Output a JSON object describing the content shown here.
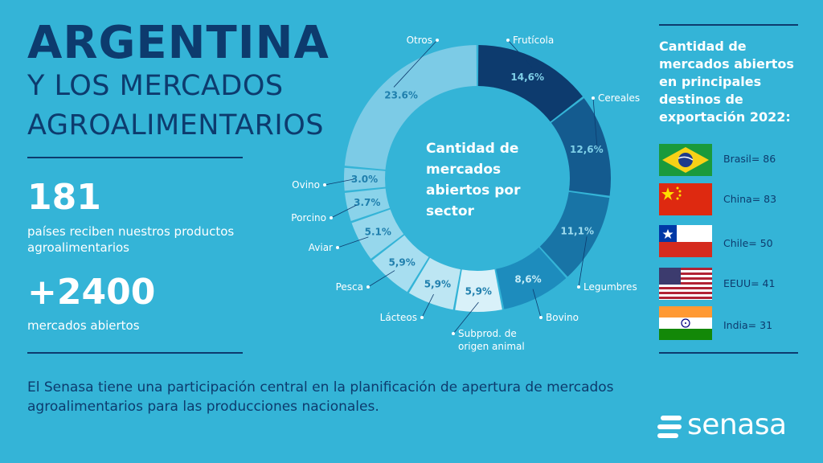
{
  "header": {
    "title_line1": "ARGENTINA",
    "title_line2": "Y LOS MERCADOS",
    "title_line3": "AGROALIMENTARIOS"
  },
  "stats": {
    "countries_value": "181",
    "countries_desc_line1": "países reciben nuestros productos",
    "countries_desc_line2": "agroalimentarios",
    "markets_value": "+2400",
    "markets_desc": "mercados abiertos"
  },
  "footer": {
    "line1": "El Senasa tiene una participación central en la planificación de apertura de mercados",
    "line2": "agroalimentarios para las producciones nacionales."
  },
  "chart_data": {
    "type": "pie",
    "donut": true,
    "title": "Cantidad de mercados abiertos por sector",
    "title_lines": [
      "Cantidad de",
      "mercados",
      "abiertos por",
      "sector"
    ],
    "slices": [
      {
        "label": "Frutícola",
        "value": 14.6,
        "value_label": "14,6%",
        "color": "#0d3b6e",
        "text_color": "#7fd0e8"
      },
      {
        "label": "Cereales",
        "value": 12.6,
        "value_label": "12,6%",
        "color": "#145b8f",
        "text_color": "#7fd0e8"
      },
      {
        "label": "Legumbres",
        "value": 11.1,
        "value_label": "11,1%",
        "color": "#1874a6",
        "text_color": "#9fdcef"
      },
      {
        "label": "Bovino",
        "value": 8.6,
        "value_label": "8,6%",
        "color": "#1d8cbd",
        "text_color": "#c7ecf7"
      },
      {
        "label": "Subprod. de origen animal",
        "value": 5.9,
        "value_label": "5,9%",
        "color": "#d9f1f9",
        "text_color": "#1f7fad"
      },
      {
        "label": "Lácteos",
        "value": 5.9,
        "value_label": "5,9%",
        "color": "#bde6f3",
        "text_color": "#1f7fad"
      },
      {
        "label": "Pesca",
        "value": 5.9,
        "value_label": "5,9%",
        "color": "#a7def0",
        "text_color": "#1f7fad"
      },
      {
        "label": "Aviar",
        "value": 5.1,
        "value_label": "5.1%",
        "color": "#96d7ec",
        "text_color": "#1f7fad"
      },
      {
        "label": "Porcino",
        "value": 3.7,
        "value_label": "3.7%",
        "color": "#8ad3ea",
        "text_color": "#1f7fad"
      },
      {
        "label": "Ovino",
        "value": 3.0,
        "value_label": "3.0%",
        "color": "#84cfe8",
        "text_color": "#1f7fad"
      },
      {
        "label": "Otros",
        "value": 23.6,
        "value_label": "23.6%",
        "color": "#7ccbe6",
        "text_color": "#1f7fad"
      }
    ]
  },
  "destinations": {
    "title": "Cantidad de mercados abiertos en principales destinos de exportación 2022:",
    "items": [
      {
        "country": "Brasil",
        "label": "Brasil= 86",
        "value": 86
      },
      {
        "country": "China",
        "label": "China= 83",
        "value": 83
      },
      {
        "country": "Chile",
        "label": "Chile= 50",
        "value": 50
      },
      {
        "country": "EEUU",
        "label": "EEUU= 41",
        "value": 41
      },
      {
        "country": "India",
        "label": "India= 31",
        "value": 31
      }
    ]
  },
  "logo": {
    "text": "senasa"
  }
}
